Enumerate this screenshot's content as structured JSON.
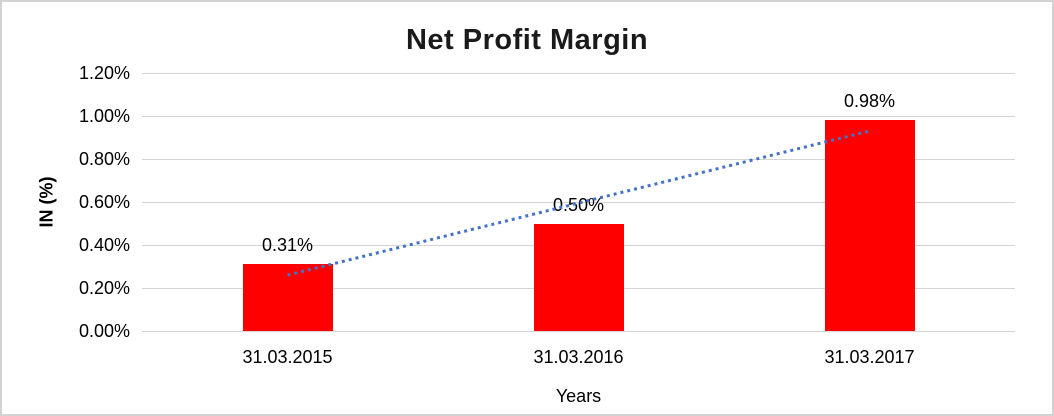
{
  "chart_data": {
    "type": "bar",
    "title": "Net Profit Margin",
    "xlabel": "Years",
    "ylabel": "IN (%)",
    "categories": [
      "31.03.2015",
      "31.03.2016",
      "31.03.2017"
    ],
    "values": [
      0.31,
      0.5,
      0.98
    ],
    "data_labels": [
      "0.31%",
      "0.50%",
      "0.98%"
    ],
    "ylim": [
      0,
      1.2
    ],
    "ytick_step": 0.2,
    "ytick_labels": [
      "0.00%",
      "0.20%",
      "0.40%",
      "0.60%",
      "0.80%",
      "1.00%",
      "1.20%"
    ],
    "grid": true,
    "legend": "none",
    "bar_color": "#FF0000",
    "gridline_color": "#D4D4D4",
    "border_color": "#D2D2D2",
    "trendline": {
      "type": "linear",
      "style": "dotted",
      "color": "#4472C4",
      "start_value": 0.26,
      "end_value": 0.93
    }
  }
}
